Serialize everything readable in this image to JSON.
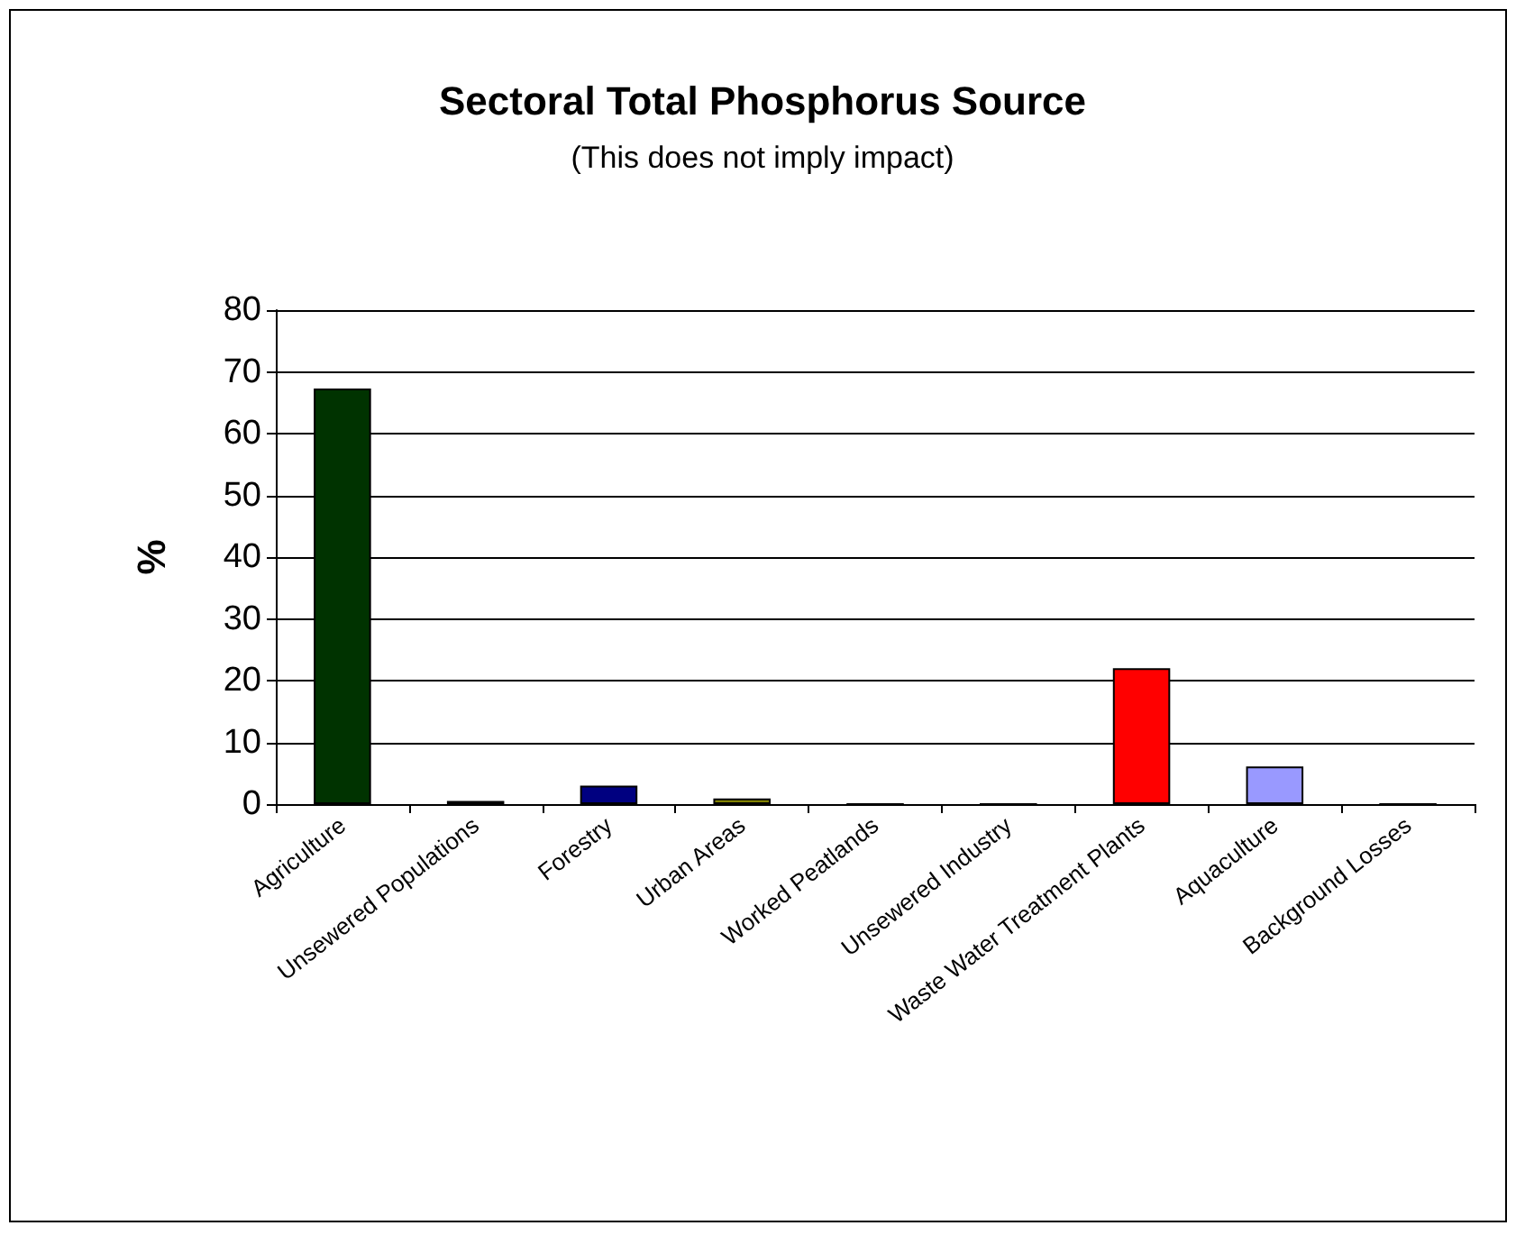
{
  "chart_data": {
    "type": "bar",
    "title": "Sectoral Total Phosphorus Source",
    "subtitle": "(This does not imply impact)",
    "ylabel": "%",
    "categories": [
      "Agriculture",
      "Unsewered Populations",
      "Forestry",
      "Urban Areas",
      "Worked Peatlands",
      "Unsewered Industry",
      "Waste Water Treatment Plants",
      "Aquaculture",
      "Background Losses"
    ],
    "values": [
      67.3,
      0.5,
      3,
      0.9,
      0,
      0,
      22,
      6.1,
      0
    ],
    "colors": [
      "#003300",
      "#000000",
      "#000080",
      "#808000",
      "#000000",
      "#000000",
      "#ff0000",
      "#9999ff",
      "#000000"
    ],
    "ylim": [
      0,
      80
    ],
    "yticks": [
      0,
      10,
      20,
      30,
      40,
      50,
      60,
      70,
      80
    ],
    "grid": "y"
  }
}
